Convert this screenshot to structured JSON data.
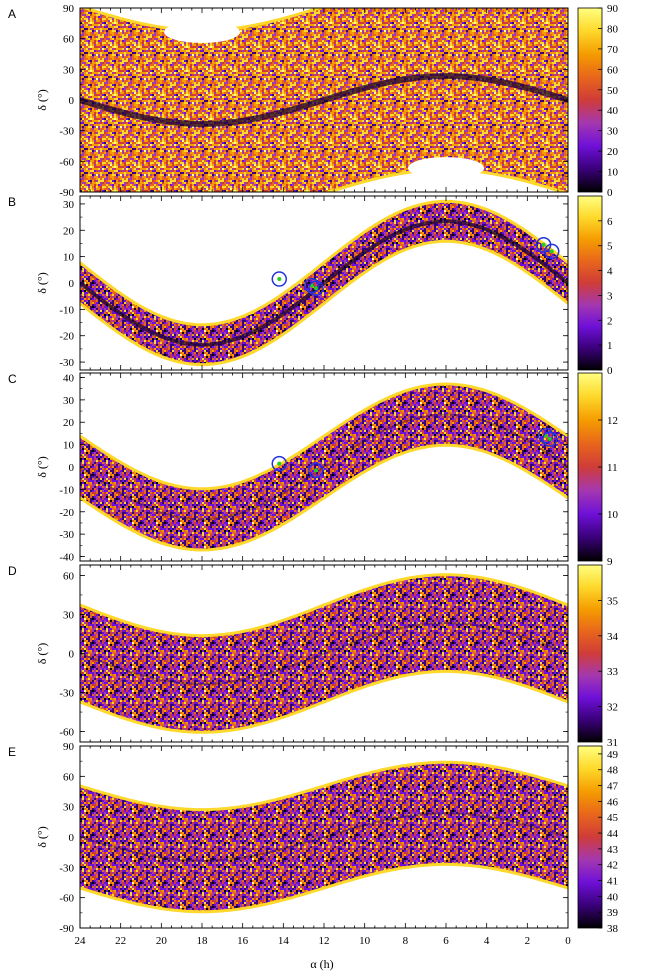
{
  "chart_data": [
    {
      "panel": "A",
      "type": "heatmap",
      "ylabel": "δ (°)",
      "yticks": [
        "90",
        "60",
        "30",
        "0",
        "-30",
        "-60",
        "-90"
      ],
      "ylim": [
        -90,
        90
      ],
      "band_center_amplitude": 23.4,
      "band_halfwidth": 90,
      "cbar_ticks": [
        "90",
        "80",
        "70",
        "60",
        "50",
        "40",
        "30",
        "20",
        "10",
        "0"
      ],
      "cbar_range": [
        0,
        90
      ],
      "markers": []
    },
    {
      "panel": "B",
      "type": "heatmap",
      "ylabel": "δ (°)",
      "yticks": [
        "30",
        "20",
        "10",
        "0",
        "-10",
        "-20",
        "-30"
      ],
      "ylim": [
        -33,
        33
      ],
      "band_center_amplitude": 23.4,
      "band_halfwidth": 7,
      "cbar_ticks": [
        "6",
        "5",
        "4",
        "3",
        "2",
        "1",
        "0"
      ],
      "cbar_range": [
        0,
        7
      ],
      "markers": [
        {
          "ra_h": 14.2,
          "dec": 1.5
        },
        {
          "ra_h": 12.6,
          "dec": -1.0
        },
        {
          "ra_h": 12.4,
          "dec": -2.0
        },
        {
          "ra_h": 1.2,
          "dec": 14.5
        },
        {
          "ra_h": 0.8,
          "dec": 12.0
        }
      ]
    },
    {
      "panel": "C",
      "type": "heatmap",
      "ylabel": "δ (°)",
      "yticks": [
        "40",
        "30",
        "20",
        "10",
        "0",
        "-10",
        "-20",
        "-30",
        "-40"
      ],
      "ylim": [
        -42,
        42
      ],
      "band_center_amplitude": 23.4,
      "band_halfwidth": 13,
      "cbar_ticks": [
        "12",
        "11",
        "10",
        "9"
      ],
      "cbar_range": [
        9,
        13
      ],
      "markers": [
        {
          "ra_h": 14.2,
          "dec": 1.5
        },
        {
          "ra_h": 12.4,
          "dec": -1.5
        },
        {
          "ra_h": 1.1,
          "dec": 14.0
        },
        {
          "ra_h": 0.9,
          "dec": 12.5
        }
      ]
    },
    {
      "panel": "D",
      "type": "heatmap",
      "ylabel": "δ (°)",
      "yticks": [
        "60",
        "30",
        "0",
        "-30",
        "-60"
      ],
      "ylim": [
        -68,
        68
      ],
      "band_center_amplitude": 23.4,
      "band_halfwidth": 36,
      "cbar_ticks": [
        "35",
        "34",
        "33",
        "32",
        "31"
      ],
      "cbar_range": [
        31,
        36
      ],
      "markers": []
    },
    {
      "panel": "E",
      "type": "heatmap",
      "ylabel": "δ (°)",
      "yticks": [
        "90",
        "60",
        "30",
        "0",
        "-30",
        "-60",
        "-90"
      ],
      "ylim": [
        -90,
        90
      ],
      "band_center_amplitude": 23.4,
      "band_halfwidth": 49,
      "cbar_ticks": [
        "49",
        "48",
        "47",
        "46",
        "45",
        "44",
        "43",
        "42",
        "41",
        "40",
        "39",
        "38"
      ],
      "cbar_range": [
        38,
        49.5
      ],
      "markers": []
    }
  ],
  "x_axis": {
    "label": "α (h)",
    "ticks": [
      "24",
      "22",
      "20",
      "18",
      "16",
      "14",
      "12",
      "10",
      "8",
      "6",
      "4",
      "2",
      "0"
    ],
    "xlim": [
      24,
      0
    ]
  },
  "colors": {
    "palette": [
      "#000000",
      "#3a007a",
      "#6e10d8",
      "#a438b0",
      "#cf3c38",
      "#e8661c",
      "#f59c00",
      "#fed82a",
      "#ffff80"
    ],
    "marker_circle": "#2233dd",
    "marker_dot": "#22cc22"
  }
}
